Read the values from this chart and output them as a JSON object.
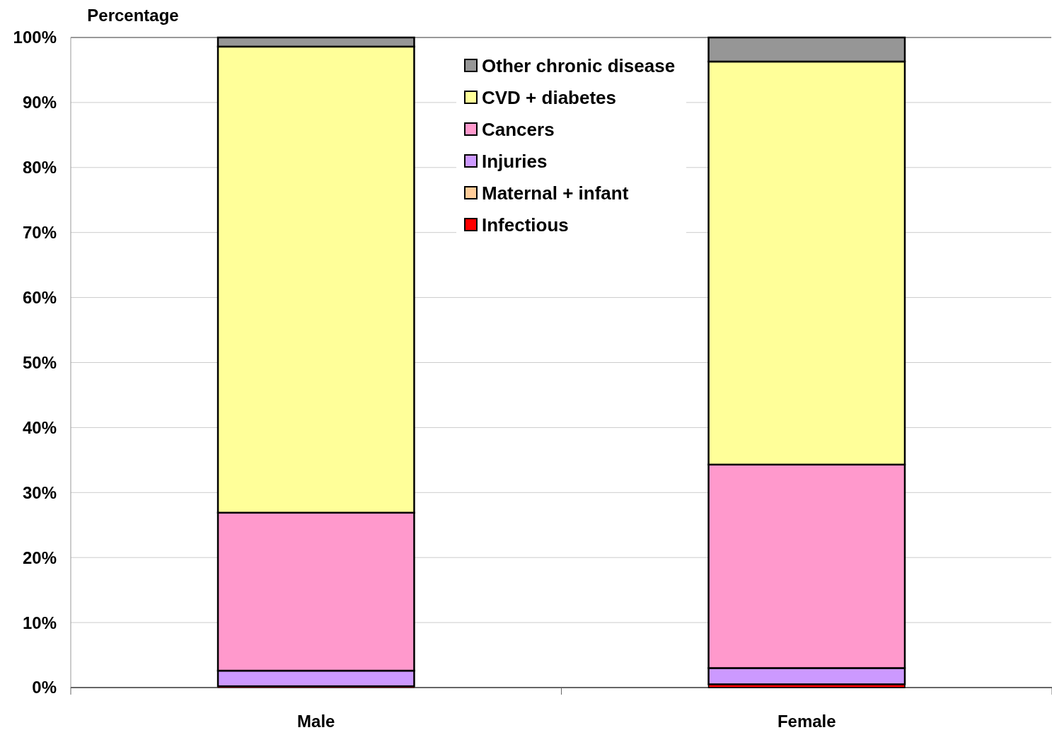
{
  "chart_data": {
    "type": "bar",
    "stacked": true,
    "ylabel": "Percentage",
    "categories": [
      "Male",
      "Female"
    ],
    "ylim": [
      0,
      100
    ],
    "yticks": [
      {
        "value": 0,
        "label": "0%"
      },
      {
        "value": 10,
        "label": "10%"
      },
      {
        "value": 20,
        "label": "20%"
      },
      {
        "value": 30,
        "label": "30%"
      },
      {
        "value": 40,
        "label": "40%"
      },
      {
        "value": 50,
        "label": "50%"
      },
      {
        "value": 60,
        "label": "60%"
      },
      {
        "value": 70,
        "label": "70%"
      },
      {
        "value": 80,
        "label": "80%"
      },
      {
        "value": 90,
        "label": "90%"
      },
      {
        "value": 100,
        "label": "100%"
      }
    ],
    "grid": "y",
    "legend": "top",
    "series": [
      {
        "name": "Infectious",
        "color": "#ff0000",
        "values": [
          0.2,
          0.5
        ]
      },
      {
        "name": "Maternal + infant",
        "color": "#ffcc99",
        "values": [
          0.0,
          0.0
        ]
      },
      {
        "name": "Injuries",
        "color": "#cc99ff",
        "values": [
          2.4,
          2.5
        ]
      },
      {
        "name": "Cancers",
        "color": "#ff99cc",
        "values": [
          24.3,
          31.3
        ]
      },
      {
        "name": "CVD + diabetes",
        "color": "#ffff99",
        "values": [
          71.7,
          62.0
        ]
      },
      {
        "name": "Other chronic disease",
        "color": "#969696",
        "values": [
          1.4,
          3.7
        ]
      }
    ]
  }
}
